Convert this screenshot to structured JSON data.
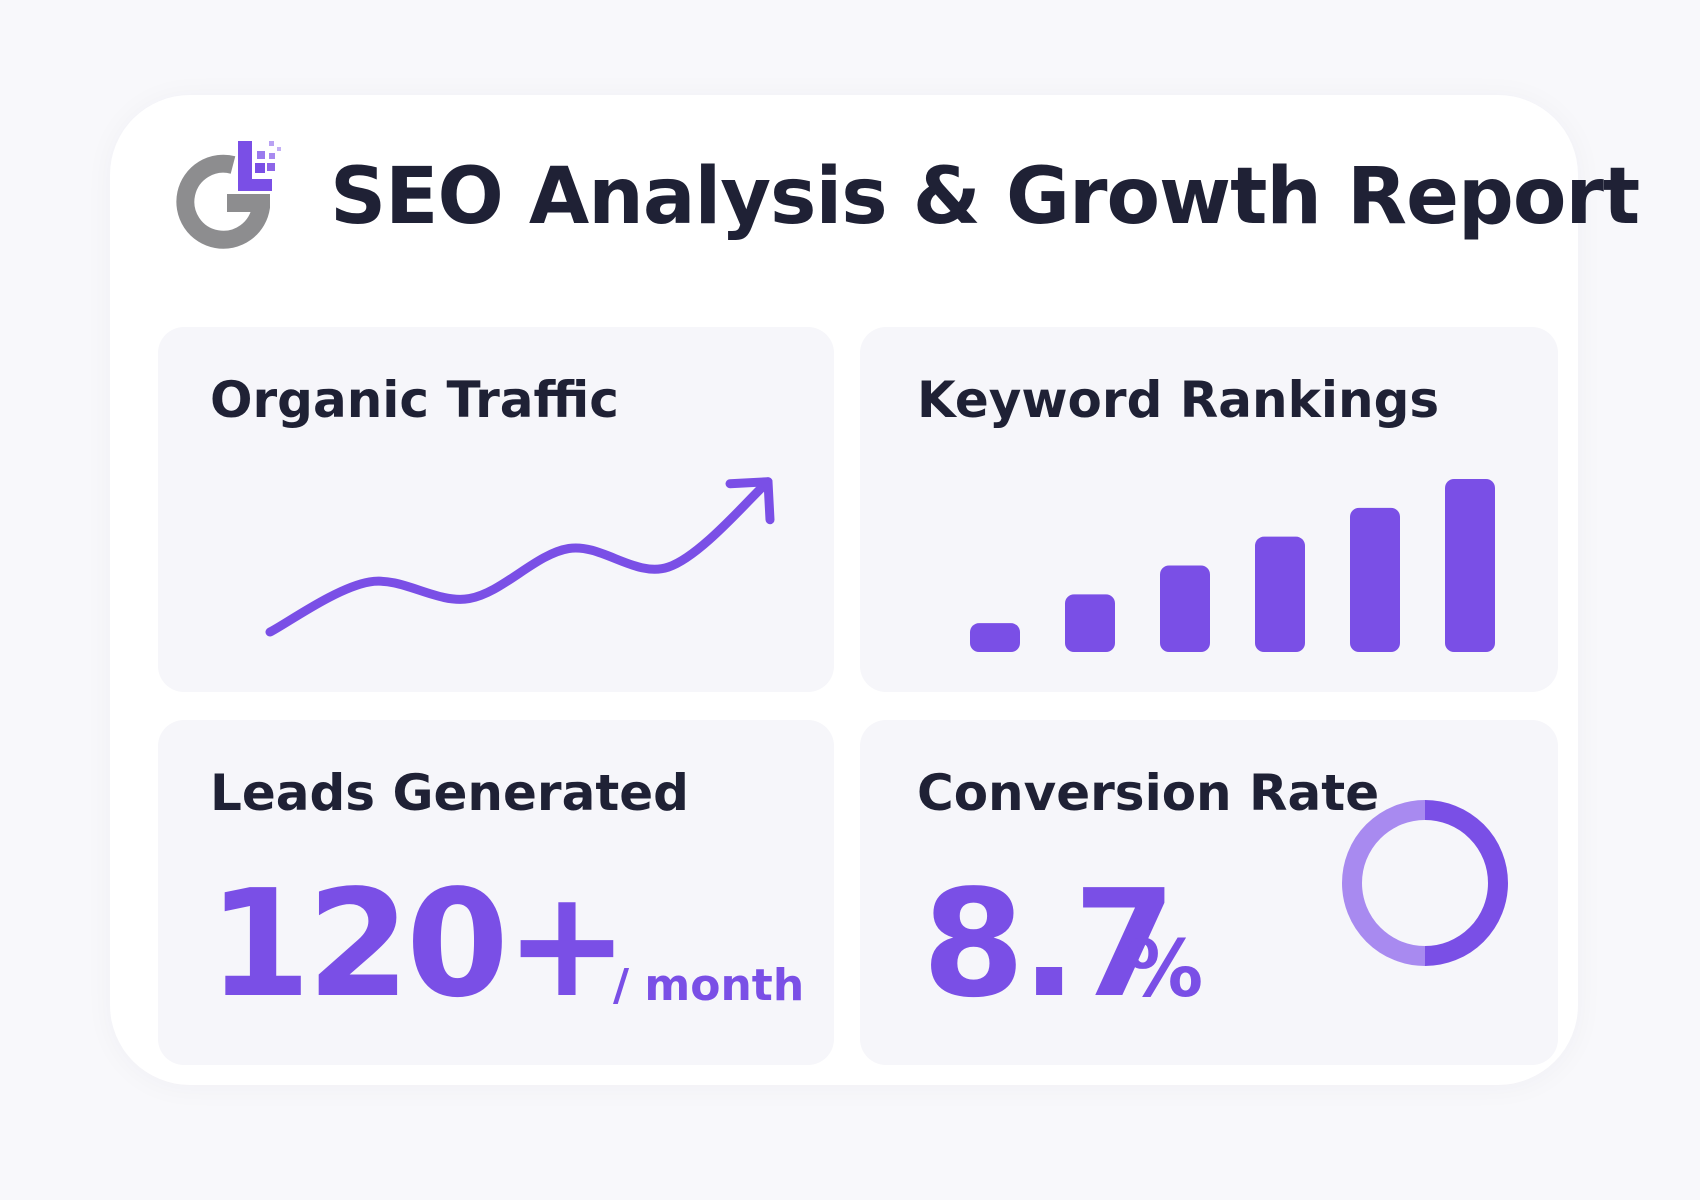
{
  "header": {
    "title": "SEO Analysis & Growth Report",
    "logo_icon": "g-pixel-logo-icon"
  },
  "colors": {
    "accent": "#7a4fe6",
    "accent_light": "#a88af0",
    "text_dark": "#1f2135",
    "panel_bg": "#f6f6fa",
    "logo_gray": "#8d8d8f"
  },
  "panels": {
    "organic_traffic": {
      "title": "Organic Traffic"
    },
    "keyword_rankings": {
      "title": "Keyword Rankings"
    },
    "leads_generated": {
      "title": "Leads Generated",
      "value": "120+",
      "unit": "/ month"
    },
    "conversion_rate": {
      "title": "Conversion Rate",
      "value": "8.7",
      "unit": "%"
    }
  },
  "chart_data": [
    {
      "type": "line",
      "title": "Organic Traffic",
      "x": [
        0,
        1,
        2,
        3,
        4,
        5
      ],
      "y": [
        0,
        2.7,
        1.8,
        4.5,
        3.5,
        8.1
      ],
      "xlim": [
        0,
        5
      ],
      "ylim": [
        0,
        9
      ],
      "grid": false,
      "end_marker": "arrow-icon"
    },
    {
      "type": "bar",
      "title": "Keyword Rankings",
      "categories": [
        "",
        "",
        "",
        "",
        "",
        ""
      ],
      "values": [
        1,
        2,
        3,
        4,
        5,
        6
      ],
      "ylim": [
        0,
        6
      ],
      "grid": false
    },
    {
      "type": "pie",
      "title": "Conversion Rate",
      "style": "ring",
      "values": [
        50,
        50
      ],
      "colors": [
        "#7a4fe6",
        "#a88af0"
      ]
    }
  ]
}
